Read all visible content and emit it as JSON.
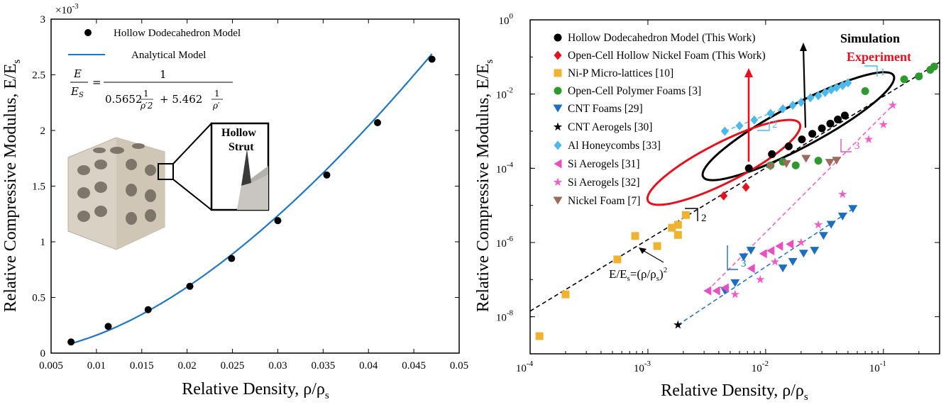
{
  "chart_data": [
    {
      "type": "scatter",
      "xlabel": "Relative Density, ρ/ρ",
      "xlabel_sub": "s",
      "ylabel": "Relative Compressive Modulus, E/E",
      "ylabel_sub": "s",
      "xlim": [
        0.005,
        0.05
      ],
      "ylim": [
        0,
        0.003
      ],
      "y_multiplier": "×10",
      "y_multiplier_exp": "-3",
      "x_ticks": [
        0.005,
        0.01,
        0.015,
        0.02,
        0.025,
        0.03,
        0.035,
        0.04,
        0.045,
        0.05
      ],
      "x_tick_labels": [
        "0.005",
        "0.01",
        "0.015",
        "0.02",
        "0.025",
        "0.03",
        "0.035",
        "0.04",
        "0.045",
        "0.05"
      ],
      "y_ticks": [
        0,
        0.0005,
        0.001,
        0.0015,
        0.002,
        0.0025,
        0.003
      ],
      "y_tick_labels": [
        "0",
        "0.5",
        "1",
        "1.5",
        "2",
        "2.5",
        "3"
      ],
      "legend_position": "top-left",
      "series": [
        {
          "name": "Hollow Dodecahedron Model",
          "kind": "markers",
          "color": "#000000",
          "x": [
            0.0072,
            0.0113,
            0.0157,
            0.0203,
            0.0249,
            0.03,
            0.0354,
            0.041,
            0.047
          ],
          "y": [
            0.0001,
            0.00024,
            0.00039,
            0.0006,
            0.00085,
            0.00119,
            0.0016,
            0.00207,
            0.00264
          ]
        },
        {
          "name": "Analytical Model",
          "kind": "line",
          "color": "#1f77c4",
          "formula": {
            "a": 0.5652,
            "b": 5.462
          }
        }
      ],
      "equation": {
        "lhs_num": "E",
        "lhs_den": "E",
        "lhs_den_sub": "S",
        "rhs_num": "1",
        "term1_coef": "0.5652",
        "term1_den": "ρ′2",
        "term2_coef": "+ 5.462",
        "term2_den": "ρ′",
        "one": "1"
      },
      "inset": {
        "label_line1": "Hollow",
        "label_line2": "Strut"
      }
    },
    {
      "type": "scatter",
      "scale": "log-log",
      "xlabel": "Relative Density, ρ/ρ",
      "xlabel_sub": "s",
      "ylabel": "Relative Compressive Modulus, E/E",
      "ylabel_sub": "s",
      "xlim": [
        0.0001,
        0.3
      ],
      "ylim": [
        1e-09,
        1
      ],
      "x_ticks": [
        {
          "base": "10",
          "exp": "-4",
          "value": -4
        },
        {
          "base": "10",
          "exp": "-3",
          "value": -3
        },
        {
          "base": "10",
          "exp": "-2",
          "value": -2
        },
        {
          "base": "10",
          "exp": "-1",
          "value": -1
        }
      ],
      "y_ticks": [
        {
          "base": "10",
          "exp": "-8",
          "value": -8
        },
        {
          "base": "10",
          "exp": "-6",
          "value": -6
        },
        {
          "base": "10",
          "exp": "-4",
          "value": -4
        },
        {
          "base": "10",
          "exp": "-2",
          "value": -2
        },
        {
          "base": "10",
          "exp": "0",
          "value": 0
        }
      ],
      "legend_position": "top-left",
      "series": [
        {
          "name": "Hollow Dodecahedron Model (This Work)",
          "marker": "circle",
          "color": "#000000",
          "x": [
            0.0072,
            0.0113,
            0.0157,
            0.0203,
            0.0249,
            0.03,
            0.0354,
            0.041,
            0.047
          ],
          "y": [
            0.0001,
            0.00024,
            0.00039,
            0.0006,
            0.00085,
            0.00119,
            0.0016,
            0.00207,
            0.00264
          ]
        },
        {
          "name": "Open-Cell Hollow Nickel Foam (This Work)",
          "marker": "diamond",
          "color": "#e8101a",
          "x": [
            0.0044,
            0.0068
          ],
          "y": [
            1.8e-05,
            3.1e-05
          ]
        },
        {
          "name": "Ni-P Micro-lattices [10]",
          "marker": "square",
          "color": "#f0b330",
          "x": [
            0.00012,
            0.0002,
            0.00055,
            0.00078,
            0.0012,
            0.0016,
            0.0018,
            0.0018,
            0.0021
          ],
          "y": [
            3e-09,
            4e-08,
            3.5e-07,
            1.5e-06,
            8e-07,
            2.5e-06,
            1.6e-06,
            3e-06,
            5.5e-06
          ]
        },
        {
          "name": "Open-Cell Polymer Foams [3]",
          "marker": "circle",
          "color": "#2e9a2e",
          "x": [
            0.011,
            0.014,
            0.018,
            0.028,
            0.07,
            0.15,
            0.2,
            0.25,
            0.27
          ],
          "y": [
            0.00012,
            0.00015,
            0.00012,
            0.00016,
            0.012,
            0.025,
            0.03,
            0.045,
            0.055
          ]
        },
        {
          "name": "CNT Foams [29]",
          "marker": "triangle-down",
          "color": "#1c6fc0",
          "x": [
            0.0045,
            0.0055,
            0.0065,
            0.0075,
            0.014,
            0.017,
            0.021,
            0.026,
            0.031,
            0.036,
            0.045,
            0.055
          ],
          "y": [
            5e-08,
            8e-08,
            4e-07,
            6e-07,
            2e-07,
            3e-07,
            5e-07,
            6e-07,
            1.5e-06,
            3e-06,
            5e-06,
            8e-06
          ]
        },
        {
          "name": "CNT Aerogels [30]",
          "marker": "star",
          "color": "#000000",
          "x": [
            0.0018
          ],
          "y": [
            6e-09
          ]
        },
        {
          "name": "Al Honeycombs [33]",
          "marker": "diamond",
          "color": "#4db8ec",
          "x": [
            0.0045,
            0.006,
            0.008,
            0.011,
            0.014,
            0.017,
            0.02,
            0.024,
            0.028,
            0.032,
            0.036,
            0.04,
            0.045,
            0.05
          ],
          "y": [
            0.001,
            0.0014,
            0.002,
            0.003,
            0.004,
            0.005,
            0.006,
            0.008,
            0.009,
            0.011,
            0.013,
            0.015,
            0.017,
            0.02
          ]
        },
        {
          "name": "Si Aerogels [31]",
          "marker": "triangle-left",
          "color": "#e84fc0",
          "x": [
            0.0032,
            0.0038,
            0.0045,
            0.0075,
            0.0095,
            0.011,
            0.013,
            0.016
          ],
          "y": [
            5e-08,
            5e-08,
            6e-08,
            2e-07,
            5e-07,
            6e-07,
            8e-07,
            9e-07
          ]
        },
        {
          "name": "Si Aerogels [32]",
          "marker": "star",
          "color": "#f25cc4",
          "x": [
            0.0055,
            0.009,
            0.012,
            0.02,
            0.028,
            0.045,
            0.075,
            0.1,
            0.12
          ],
          "y": [
            4e-08,
            1e-07,
            3e-07,
            1e-06,
            3e-06,
            2e-05,
            0.0006,
            0.0015,
            0.005
          ]
        },
        {
          "name": "Nickel Foam [7]",
          "marker": "triangle-down",
          "color": "#9b6b5e",
          "x": [
            0.011,
            0.015,
            0.022,
            0.035,
            0.04
          ],
          "y": [
            0.00011,
            0.00013,
            0.00018,
            0.00014,
            0.00016
          ]
        }
      ],
      "annotations": {
        "simulation": "Simulation",
        "experiment": "Experiment",
        "reference_line": "E/E",
        "reference_line_s1": "s",
        "reference_line_mid": "=(ρ/ρ",
        "reference_line_s2": "s",
        "reference_line_end": ")",
        "reference_line_exp": "2",
        "slope_labels": [
          "1",
          "2",
          "2",
          "3",
          "3"
        ]
      },
      "colors": {
        "simulation_ellipse": "#000000",
        "experiment_ellipse": "#e8101a",
        "reference": "#000000"
      }
    }
  ]
}
